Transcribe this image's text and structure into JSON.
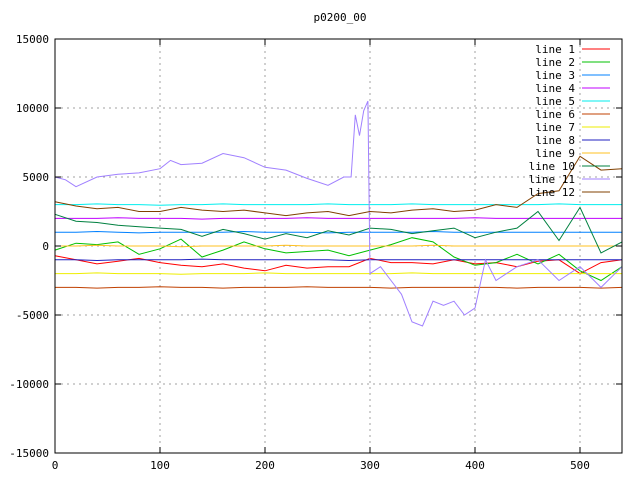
{
  "chart_data": {
    "type": "line",
    "title": "p0200_00",
    "xlabel": "",
    "ylabel": "",
    "xlim": [
      0,
      540
    ],
    "ylim": [
      -15000,
      15000
    ],
    "xticks": [
      0,
      100,
      200,
      300,
      400,
      500
    ],
    "yticks": [
      -15000,
      -10000,
      -5000,
      0,
      5000,
      10000,
      15000
    ],
    "grid": true,
    "legend_position": "top-right",
    "x": [
      0,
      20,
      40,
      60,
      80,
      100,
      120,
      140,
      160,
      180,
      200,
      220,
      240,
      260,
      280,
      300,
      320,
      340,
      360,
      380,
      400,
      420,
      440,
      460,
      480,
      500,
      520,
      540
    ],
    "series": [
      {
        "name": "line 1",
        "color": "#ff0000",
        "y": [
          -700,
          -1000,
          -1300,
          -1100,
          -900,
          -1200,
          -1400,
          -1500,
          -1300,
          -1600,
          -1800,
          -1400,
          -1600,
          -1500,
          -1500,
          -900,
          -1200,
          -1200,
          -1300,
          -1000,
          -1300,
          -1200,
          -1500,
          -1100,
          -1000,
          -2000,
          -1200,
          -1000
        ]
      },
      {
        "name": "line 2",
        "color": "#00c000",
        "y": [
          -300,
          200,
          100,
          300,
          -600,
          -200,
          500,
          -800,
          -300,
          300,
          -200,
          -500,
          -400,
          -300,
          -700,
          -300,
          100,
          600,
          300,
          -800,
          -1400,
          -1200,
          -600,
          -1300,
          -600,
          -1800,
          -2500,
          -1500
        ]
      },
      {
        "name": "line 3",
        "color": "#0080ff",
        "y": [
          1000,
          1000,
          1050,
          1000,
          950,
          1000,
          1000,
          1000,
          1000,
          1050,
          1000,
          1000,
          1000,
          950,
          1000,
          1000,
          1000,
          1000,
          1050,
          1000,
          1000,
          1000,
          1000,
          1000,
          1000,
          1000,
          1000,
          1000
        ]
      },
      {
        "name": "line 4",
        "color": "#c000ff",
        "y": [
          2000,
          2000,
          2000,
          2050,
          2000,
          2000,
          2000,
          1950,
          2000,
          2000,
          2000,
          2000,
          2050,
          2000,
          2000,
          2000,
          2000,
          2000,
          2000,
          2000,
          2050,
          2000,
          2000,
          2000,
          2000,
          2000,
          2000,
          2000
        ]
      },
      {
        "name": "line 5",
        "color": "#00eeee",
        "y": [
          3000,
          3000,
          3050,
          3000,
          3000,
          2950,
          3000,
          3000,
          3050,
          3000,
          3000,
          3000,
          3000,
          3050,
          3000,
          3000,
          3000,
          3050,
          3000,
          3000,
          3000,
          3000,
          3000,
          3000,
          3050,
          3000,
          3000,
          3000
        ]
      },
      {
        "name": "line 6",
        "color": "#c04000",
        "y": [
          -3000,
          -3000,
          -3050,
          -3000,
          -3000,
          -2950,
          -3000,
          -3000,
          -3050,
          -3000,
          -3000,
          -3000,
          -2950,
          -3000,
          -3000,
          -3000,
          -3050,
          -3000,
          -3000,
          -3000,
          -3000,
          -3000,
          -3050,
          -3000,
          -3000,
          -3000,
          -3050,
          -3000
        ]
      },
      {
        "name": "line 7",
        "color": "#eeee00",
        "y": [
          -2000,
          -2000,
          -1950,
          -2000,
          -2000,
          -2000,
          -2050,
          -2000,
          -2000,
          -2000,
          -1950,
          -2000,
          -2000,
          -2000,
          -2000,
          -2000,
          -2000,
          -1950,
          -2000,
          -2000,
          -2000,
          -2000,
          -2000,
          -2000,
          -2000,
          -2000,
          -2000,
          -2000
        ]
      },
      {
        "name": "line 8",
        "color": "#2020c0",
        "y": [
          -1000,
          -1000,
          -1050,
          -1000,
          -1000,
          -1000,
          -1000,
          -950,
          -1000,
          -1000,
          -1000,
          -1000,
          -1000,
          -1000,
          -1050,
          -1000,
          -1000,
          -1000,
          -1000,
          -1000,
          -1000,
          -1000,
          -1000,
          -1000,
          -1000,
          -1000,
          -1000,
          -1000
        ]
      },
      {
        "name": "line 9",
        "color": "#ffc020",
        "y": [
          0,
          0,
          50,
          0,
          0,
          0,
          -50,
          0,
          0,
          0,
          0,
          50,
          0,
          0,
          0,
          0,
          0,
          0,
          50,
          0,
          0,
          0,
          0,
          0,
          0,
          0,
          0,
          0
        ]
      },
      {
        "name": "line 10",
        "color": "#008040",
        "y": [
          2300,
          1800,
          1700,
          1500,
          1400,
          1300,
          1200,
          700,
          1200,
          900,
          500,
          900,
          600,
          1100,
          800,
          1300,
          1200,
          900,
          1100,
          1300,
          600,
          1000,
          1300,
          2500,
          400,
          2800,
          -500,
          300
        ]
      },
      {
        "name": "line 11",
        "color": "#a080ff",
        "x": [
          0,
          10,
          20,
          40,
          60,
          80,
          100,
          110,
          120,
          140,
          160,
          180,
          200,
          220,
          240,
          260,
          275,
          282,
          286,
          290,
          294,
          298,
          300,
          310,
          320,
          330,
          340,
          350,
          360,
          370,
          380,
          390,
          400,
          410,
          420,
          430,
          440,
          460,
          480,
          500,
          520,
          540
        ],
        "y": [
          5000,
          4800,
          4300,
          5000,
          5200,
          5300,
          5600,
          6200,
          5900,
          6000,
          6700,
          6400,
          5700,
          5500,
          4900,
          4400,
          5000,
          5000,
          9500,
          8000,
          9800,
          10500,
          -2000,
          -1500,
          -2500,
          -3500,
          -5500,
          -5800,
          -4000,
          -4300,
          -4000,
          -5000,
          -4500,
          -1000,
          -2500,
          -2000,
          -1500,
          -1000,
          -2500,
          -1500,
          -3000,
          -1500
        ]
      },
      {
        "name": "line 12",
        "color": "#804000",
        "y": [
          3200,
          2900,
          2700,
          2800,
          2500,
          2500,
          2800,
          2600,
          2500,
          2600,
          2400,
          2200,
          2400,
          2500,
          2200,
          2500,
          2400,
          2600,
          2700,
          2500,
          2600,
          3000,
          2800,
          3800,
          4000,
          6500,
          5500,
          5600
        ]
      }
    ]
  }
}
